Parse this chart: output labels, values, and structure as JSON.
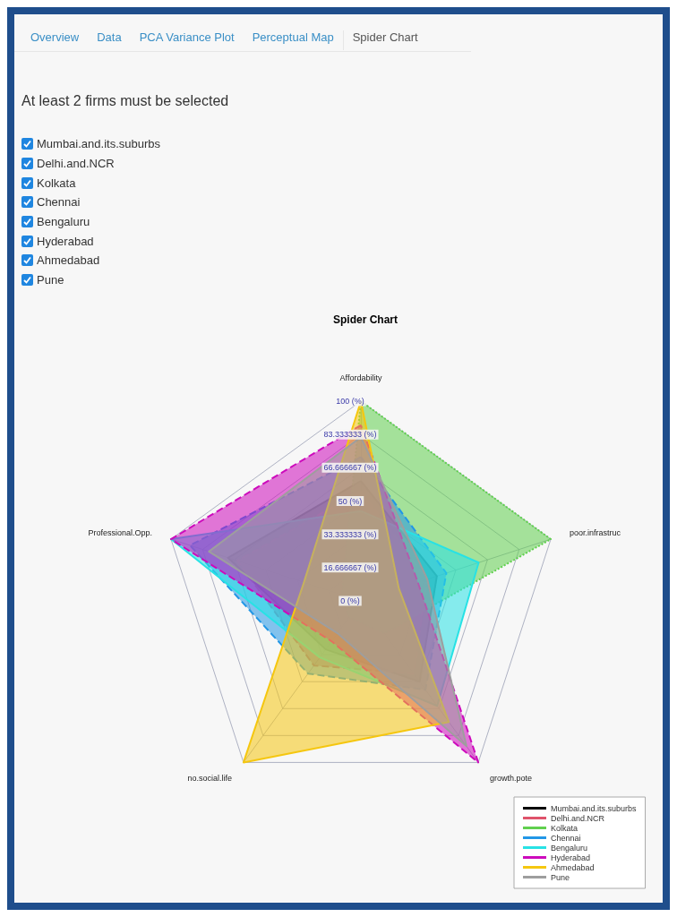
{
  "chart_data": {
    "type": "radar",
    "title": "Spider Chart",
    "annotations": [
      "Overview",
      "Data",
      "PCA Variance Plot",
      "Perceptual Map",
      "Spider Chart",
      "At least 2 firms must be selected"
    ],
    "categories": [
      "Affordability",
      "poor.infrastruc",
      "growth.pote",
      "no.social.life",
      "Professional.Opp."
    ],
    "ylim": [
      0,
      100
    ],
    "yticks": [
      {
        "value": 0,
        "label": "0 (%)"
      },
      {
        "value": 16.666667,
        "label": "16.666667 (%)"
      },
      {
        "value": 33.333333,
        "label": "33.333333 (%)"
      },
      {
        "value": 50,
        "label": "50 (%)"
      },
      {
        "value": 66.666667,
        "label": "66.666667 (%)"
      },
      {
        "value": 83.333333,
        "label": "83.333333 (%)"
      },
      {
        "value": 100,
        "label": "100 (%)"
      }
    ],
    "legend": "bottom right",
    "series": [
      {
        "name": "Mumbai.and.its.suburbs",
        "color": "#000000",
        "line_style": "solid",
        "values": [
          60,
          40,
          50,
          30,
          70
        ]
      },
      {
        "name": "Delhi.and.NCR",
        "color": "#df536b",
        "line_style": "dashed",
        "values": [
          55,
          35,
          45,
          40,
          65
        ]
      },
      {
        "name": "Kolkata",
        "color": "#61d04f",
        "line_style": "dotted",
        "values": [
          100,
          100,
          20,
          10,
          10
        ]
      },
      {
        "name": "Chennai",
        "color": "#2297e6",
        "line_style": "dashed",
        "values": [
          72,
          45,
          55,
          45,
          90
        ]
      },
      {
        "name": "Bengaluru",
        "color": "#28e2e5",
        "line_style": "solid",
        "values": [
          45,
          62,
          65,
          35,
          100
        ]
      },
      {
        "name": "Hyderabad",
        "color": "#cd0bbc",
        "line_style": "dashed",
        "values": [
          88,
          30,
          100,
          25,
          100
        ]
      },
      {
        "name": "Ahmedabad",
        "color": "#f5c710",
        "line_style": "solid",
        "values": [
          100,
          20,
          75,
          100,
          30
        ]
      },
      {
        "name": "Pune",
        "color": "#9e9e9e",
        "line_style": "solid",
        "values": [
          82,
          35,
          90,
          20,
          80
        ]
      }
    ]
  }
}
